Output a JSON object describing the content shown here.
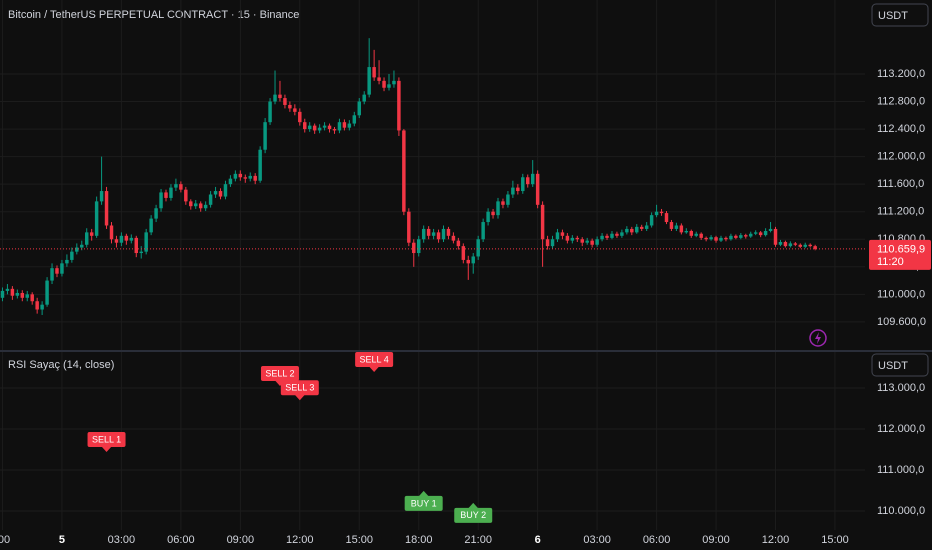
{
  "chart_data": [
    {
      "type": "candlestick",
      "title": "Bitcoin / TetherUS PERPETUAL CONTRACT · 15 · Binance",
      "currency": "USDT",
      "up_color": "#089981",
      "down_color": "#f23645",
      "grid": true,
      "ylim": [
        109192,
        114274
      ],
      "yticks": [
        {
          "value": 113200,
          "label": "113.200,0"
        },
        {
          "value": 112800,
          "label": "112.800,0"
        },
        {
          "value": 112400,
          "label": "112.400,0"
        },
        {
          "value": 112000,
          "label": "112.000,0"
        },
        {
          "value": 111600,
          "label": "111.600,0"
        },
        {
          "value": 111200,
          "label": "111.200,0"
        },
        {
          "value": 110800,
          "label": "110.800,0"
        },
        {
          "value": 110400,
          "label": "110.400,0"
        },
        {
          "value": 110000,
          "label": "110.000,0"
        },
        {
          "value": 109600,
          "label": "109.600,0"
        }
      ],
      "xlim": [
        -0.5,
        174.06
      ],
      "xticks": [
        {
          "value": 0,
          "label": ":00"
        },
        {
          "value": 12,
          "label": "5"
        },
        {
          "value": 24,
          "label": "03:00"
        },
        {
          "value": 36,
          "label": "06:00"
        },
        {
          "value": 48,
          "label": "09:00"
        },
        {
          "value": 60,
          "label": "12:00"
        },
        {
          "value": 72,
          "label": "15:00"
        },
        {
          "value": 84,
          "label": "18:00"
        },
        {
          "value": 96,
          "label": "21:00"
        },
        {
          "value": 108,
          "label": "6"
        },
        {
          "value": 120,
          "label": "03:00"
        },
        {
          "value": 132,
          "label": "06:00"
        },
        {
          "value": 144,
          "label": "09:00"
        },
        {
          "value": 156,
          "label": "12:00"
        },
        {
          "value": 168,
          "label": "15:00"
        }
      ],
      "last_price": {
        "value": 110659.9,
        "label": "110.659,9"
      },
      "countdown": "11:20",
      "candles": [
        [
          109950,
          110100,
          109900,
          110050
        ],
        [
          110050,
          110150,
          110000,
          110080
        ],
        [
          110080,
          110120,
          109920,
          109980
        ],
        [
          109980,
          110070,
          109940,
          110020
        ],
        [
          110020,
          110060,
          109900,
          109950
        ],
        [
          109950,
          110050,
          109900,
          110000
        ],
        [
          110000,
          110030,
          109850,
          109900
        ],
        [
          109900,
          109950,
          109720,
          109780
        ],
        [
          109780,
          109900,
          109700,
          109850
        ],
        [
          109850,
          110250,
          109820,
          110200
        ],
        [
          110200,
          110450,
          110150,
          110380
        ],
        [
          110380,
          110420,
          110250,
          110300
        ],
        [
          110300,
          110500,
          110260,
          110450
        ],
        [
          110450,
          110580,
          110400,
          110500
        ],
        [
          110500,
          110680,
          110460,
          110620
        ],
        [
          110620,
          110740,
          110580,
          110680
        ],
        [
          110680,
          110780,
          110640,
          110720
        ],
        [
          110720,
          110960,
          110680,
          110900
        ],
        [
          110900,
          110950,
          110780,
          110850
        ],
        [
          110850,
          111420,
          110820,
          111350
        ],
        [
          111350,
          112000,
          111300,
          111500
        ],
        [
          111500,
          111560,
          110950,
          111000
        ],
        [
          111000,
          111050,
          110740,
          110800
        ],
        [
          110800,
          110850,
          110680,
          110750
        ],
        [
          110750,
          110900,
          110700,
          110850
        ],
        [
          110850,
          110880,
          110720,
          110780
        ],
        [
          110780,
          110870,
          110740,
          110820
        ],
        [
          110820,
          110850,
          110540,
          110600
        ],
        [
          110600,
          110700,
          110520,
          110620
        ],
        [
          110620,
          110950,
          110580,
          110900
        ],
        [
          110900,
          111150,
          110860,
          111100
        ],
        [
          111100,
          111300,
          111050,
          111250
        ],
        [
          111250,
          111530,
          111200,
          111480
        ],
        [
          111480,
          111520,
          111350,
          111400
        ],
        [
          111400,
          111600,
          111360,
          111550
        ],
        [
          111550,
          111680,
          111500,
          111600
        ],
        [
          111600,
          111640,
          111480,
          111520
        ],
        [
          111520,
          111560,
          111300,
          111350
        ],
        [
          111350,
          111380,
          111230,
          111280
        ],
        [
          111280,
          111370,
          111240,
          111320
        ],
        [
          111320,
          111350,
          111200,
          111250
        ],
        [
          111250,
          111350,
          111210,
          111300
        ],
        [
          111300,
          111500,
          111260,
          111450
        ],
        [
          111450,
          111560,
          111400,
          111500
        ],
        [
          111500,
          111540,
          111380,
          111420
        ],
        [
          111420,
          111650,
          111380,
          111600
        ],
        [
          111600,
          111730,
          111560,
          111680
        ],
        [
          111680,
          111800,
          111640,
          111750
        ],
        [
          111750,
          111800,
          111650,
          111700
        ],
        [
          111700,
          111740,
          111620,
          111680
        ],
        [
          111680,
          111770,
          111640,
          111720
        ],
        [
          111720,
          111760,
          111600,
          111650
        ],
        [
          111650,
          112150,
          111620,
          112100
        ],
        [
          112100,
          112560,
          112050,
          112500
        ],
        [
          112500,
          112850,
          112460,
          112800
        ],
        [
          112800,
          113250,
          112760,
          112900
        ],
        [
          112900,
          113100,
          112800,
          112850
        ],
        [
          112850,
          112900,
          112700,
          112750
        ],
        [
          112750,
          112800,
          112650,
          112700
        ],
        [
          112700,
          112760,
          112600,
          112650
        ],
        [
          112650,
          112700,
          112450,
          112500
        ],
        [
          112500,
          112550,
          112350,
          112400
        ],
        [
          112400,
          112500,
          112360,
          112450
        ],
        [
          112450,
          112480,
          112330,
          112380
        ],
        [
          112380,
          112470,
          112340,
          112420
        ],
        [
          112420,
          112500,
          112380,
          112450
        ],
        [
          112450,
          112480,
          112350,
          112400
        ],
        [
          112400,
          112430,
          112330,
          112380
        ],
        [
          112380,
          112550,
          112340,
          112500
        ],
        [
          112500,
          112540,
          112380,
          112420
        ],
        [
          112420,
          112530,
          112380,
          112480
        ],
        [
          112480,
          112650,
          112440,
          112600
        ],
        [
          112600,
          112850,
          112560,
          112800
        ],
        [
          112800,
          112950,
          112760,
          112900
        ],
        [
          112900,
          113720,
          112860,
          113300
        ],
        [
          113300,
          113550,
          113100,
          113150
        ],
        [
          113150,
          113400,
          113050,
          113100
        ],
        [
          113100,
          113150,
          112950,
          113000
        ],
        [
          113000,
          113200,
          112960,
          113050
        ],
        [
          113050,
          113250,
          113000,
          113100
        ],
        [
          113100,
          113150,
          112300,
          112380
        ],
        [
          112380,
          112400,
          111150,
          111200
        ],
        [
          111200,
          111250,
          110700,
          110750
        ],
        [
          110750,
          110800,
          110400,
          110600
        ],
        [
          110600,
          110850,
          110550,
          110800
        ],
        [
          110800,
          111000,
          110750,
          110950
        ],
        [
          110950,
          110990,
          110800,
          110850
        ],
        [
          110850,
          110950,
          110800,
          110900
        ],
        [
          110900,
          110940,
          110750,
          110800
        ],
        [
          110800,
          111000,
          110760,
          110950
        ],
        [
          110950,
          110980,
          110800,
          110850
        ],
        [
          110850,
          110900,
          110740,
          110780
        ],
        [
          110780,
          110820,
          110650,
          110700
        ],
        [
          110700,
          110740,
          110450,
          110500
        ],
        [
          110500,
          110560,
          110210,
          110450
        ],
        [
          110450,
          110600,
          110300,
          110550
        ],
        [
          110550,
          110850,
          110500,
          110800
        ],
        [
          110800,
          111100,
          110760,
          111050
        ],
        [
          111050,
          111250,
          111000,
          111200
        ],
        [
          111200,
          111240,
          111100,
          111150
        ],
        [
          111150,
          111400,
          111100,
          111350
        ],
        [
          111350,
          111390,
          111250,
          111300
        ],
        [
          111300,
          111500,
          111260,
          111450
        ],
        [
          111450,
          111650,
          111400,
          111550
        ],
        [
          111550,
          111600,
          111450,
          111500
        ],
        [
          111500,
          111750,
          111460,
          111700
        ],
        [
          111700,
          111740,
          111550,
          111600
        ],
        [
          111600,
          111950,
          111560,
          111750
        ],
        [
          111750,
          111800,
          111250,
          111300
        ],
        [
          111300,
          111350,
          110400,
          110800
        ],
        [
          110800,
          110850,
          110650,
          110700
        ],
        [
          110700,
          110850,
          110660,
          110800
        ],
        [
          110800,
          110950,
          110760,
          110900
        ],
        [
          110900,
          110940,
          110800,
          110850
        ],
        [
          110850,
          110890,
          110740,
          110780
        ],
        [
          110780,
          110860,
          110740,
          110820
        ],
        [
          110820,
          110850,
          110760,
          110800
        ],
        [
          110800,
          110830,
          110700,
          110750
        ],
        [
          110750,
          110820,
          110720,
          110780
        ],
        [
          110780,
          110810,
          110680,
          110720
        ],
        [
          110720,
          110840,
          110690,
          110800
        ],
        [
          110800,
          110890,
          110770,
          110850
        ],
        [
          110850,
          110880,
          110790,
          110820
        ],
        [
          110820,
          110920,
          110800,
          110880
        ],
        [
          110880,
          110910,
          110820,
          110850
        ],
        [
          110850,
          110940,
          110820,
          110900
        ],
        [
          110900,
          110990,
          110870,
          110950
        ],
        [
          110950,
          110980,
          110860,
          110900
        ],
        [
          110900,
          111020,
          110880,
          110980
        ],
        [
          110980,
          111010,
          110920,
          110950
        ],
        [
          110950,
          111050,
          110920,
          111000
        ],
        [
          111000,
          111190,
          110970,
          111150
        ],
        [
          111150,
          111300,
          111120,
          111200
        ],
        [
          111200,
          111240,
          111140,
          111180
        ],
        [
          111180,
          111210,
          111020,
          111050
        ],
        [
          111050,
          111080,
          110920,
          110950
        ],
        [
          110950,
          111040,
          110920,
          111000
        ],
        [
          111000,
          111030,
          110870,
          110900
        ],
        [
          110900,
          110960,
          110880,
          110920
        ],
        [
          110920,
          110940,
          110820,
          110850
        ],
        [
          110850,
          110910,
          110830,
          110880
        ],
        [
          110880,
          110900,
          110790,
          110820
        ],
        [
          110820,
          110840,
          110770,
          110800
        ],
        [
          110800,
          110860,
          110780,
          110830
        ],
        [
          110830,
          110850,
          110750,
          110780
        ],
        [
          110780,
          110850,
          110760,
          110820
        ],
        [
          110820,
          110840,
          110770,
          110800
        ],
        [
          110800,
          110880,
          110780,
          110850
        ],
        [
          110850,
          110870,
          110800,
          110820
        ],
        [
          110820,
          110890,
          110800,
          110860
        ],
        [
          110860,
          110880,
          110810,
          110840
        ],
        [
          110840,
          110910,
          110820,
          110880
        ],
        [
          110880,
          110930,
          110860,
          110900
        ],
        [
          110900,
          110920,
          110830,
          110860
        ],
        [
          110860,
          110960,
          110840,
          110920
        ],
        [
          110920,
          111050,
          110900,
          110950
        ],
        [
          110950,
          110980,
          110690,
          110720
        ],
        [
          110720,
          110790,
          110700,
          110760
        ],
        [
          110760,
          110780,
          110680,
          110700
        ],
        [
          110700,
          110770,
          110680,
          110740
        ],
        [
          110740,
          110760,
          110700,
          110720
        ],
        [
          110720,
          110740,
          110670,
          110690
        ],
        [
          110690,
          110750,
          110670,
          110720
        ],
        [
          110720,
          110740,
          110680,
          110700
        ],
        [
          110700,
          110720,
          110640,
          110659.9
        ]
      ]
    },
    {
      "type": "signals",
      "title": "RSI Sayaç (14, close)",
      "currency": "USDT",
      "grid": true,
      "ylim": [
        109537,
        113878
      ],
      "yticks": [
        {
          "value": 113000,
          "label": "113.000,0"
        },
        {
          "value": 112000,
          "label": "112.000,0"
        },
        {
          "value": 111000,
          "label": "111.000,0"
        },
        {
          "value": 110000,
          "label": "110.000,0"
        }
      ],
      "signals": [
        {
          "label": "SELL 1",
          "x": 21,
          "value": 111440,
          "color": "#f23645",
          "pointer": "down"
        },
        {
          "label": "SELL 2",
          "x": 56,
          "value": 113050,
          "color": "#f23645",
          "pointer": "down"
        },
        {
          "label": "SELL 3",
          "x": 60,
          "value": 112700,
          "color": "#f23645",
          "pointer": "down"
        },
        {
          "label": "SELL 4",
          "x": 75,
          "value": 113390,
          "color": "#f23645",
          "pointer": "down"
        },
        {
          "label": "BUY 1",
          "x": 85,
          "value": 110490,
          "color": "#4caf50",
          "pointer": "up"
        },
        {
          "label": "BUY 2",
          "x": 95,
          "value": 110200,
          "color": "#4caf50",
          "pointer": "up"
        }
      ]
    }
  ]
}
